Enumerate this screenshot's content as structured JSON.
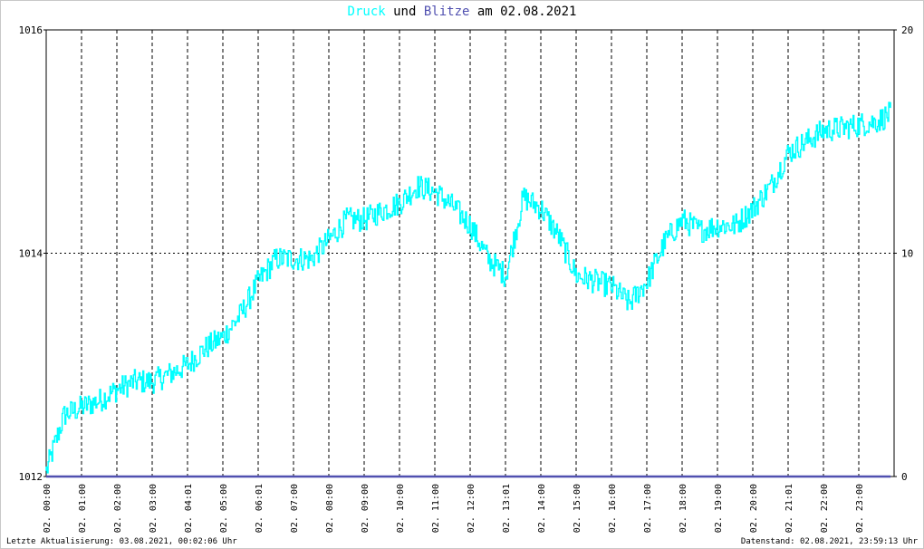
{
  "chart_data": {
    "type": "line",
    "title": {
      "part1": "Druck",
      "part2": "und",
      "part3": "Blitze",
      "part4": "am 02.08.2021"
    },
    "colors": {
      "pressure": "#00ffff",
      "lightning": "#5050b0",
      "grid": "#000000",
      "title_blitze": "#5050b0"
    },
    "y_left": {
      "min": 1012,
      "max": 1016,
      "ticks": [
        "1012",
        "1014",
        "1016"
      ]
    },
    "y_right": {
      "min": 0,
      "max": 20,
      "ticks": [
        "0",
        "10",
        "20"
      ]
    },
    "x_ticks": [
      "02. 00:00",
      "02. 01:00",
      "02. 02:00",
      "02. 03:00",
      "02. 04:01",
      "02. 05:00",
      "02. 06:01",
      "02. 07:00",
      "02. 08:00",
      "02. 09:00",
      "02. 10:00",
      "02. 11:00",
      "02. 12:00",
      "02. 13:01",
      "02. 14:00",
      "02. 15:00",
      "02. 16:00",
      "02. 17:00",
      "02. 18:00",
      "02. 19:00",
      "02. 20:00",
      "02. 21:01",
      "02. 22:00",
      "02. 23:00"
    ],
    "grid": true,
    "series": [
      {
        "hour": [
          0,
          0.5,
          1,
          1.5,
          2,
          2.5,
          3,
          3.5,
          4,
          4.5,
          5,
          5.5,
          6,
          6.5,
          7,
          7.5,
          8,
          8.5,
          9,
          9.5,
          10,
          10.5,
          11,
          11.5,
          12,
          12.5,
          13,
          13.5,
          14,
          14.5,
          15,
          15.5,
          16,
          16.5,
          17,
          17.5,
          18,
          18.5,
          19,
          19.5,
          20,
          20.5,
          21,
          21.5,
          22,
          22.5,
          23,
          23.5,
          23.9
        ],
        "values": [
          1012.05,
          1012.55,
          1012.62,
          1012.68,
          1012.78,
          1012.85,
          1012.85,
          1012.92,
          1013.0,
          1013.15,
          1013.25,
          1013.45,
          1013.75,
          1013.95,
          1013.95,
          1013.95,
          1014.12,
          1014.3,
          1014.3,
          1014.38,
          1014.45,
          1014.6,
          1014.55,
          1014.42,
          1014.25,
          1013.95,
          1013.8,
          1014.5,
          1014.4,
          1014.15,
          1013.8,
          1013.75,
          1013.7,
          1013.55,
          1013.75,
          1014.1,
          1014.3,
          1014.2,
          1014.25,
          1014.25,
          1014.4,
          1014.6,
          1014.9,
          1015.0,
          1015.1,
          1015.12,
          1015.15,
          1015.18,
          1015.25
        ]
      },
      {
        "hour": [
          0,
          23.9
        ],
        "values": [
          0,
          0
        ]
      }
    ]
  },
  "footer": {
    "left": "Letzte Aktualisierung: 03.08.2021, 00:02:06 Uhr",
    "right": "Datenstand: 02.08.2021, 23:59:13 Uhr"
  }
}
